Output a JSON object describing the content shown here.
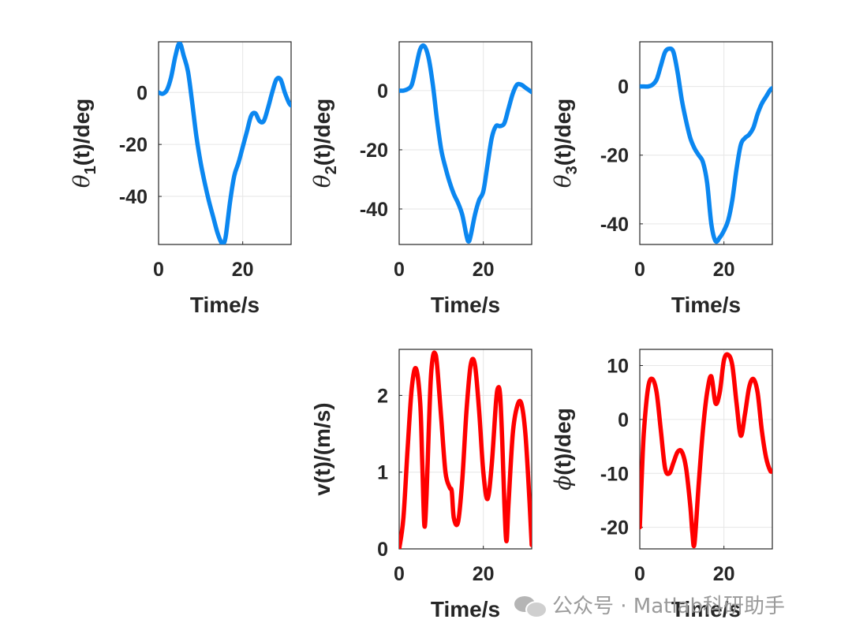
{
  "chart_data": [
    {
      "type": "line",
      "ylabel_symbol": "θ",
      "ylabel_sub": "1",
      "ylabel_rest": "(t)/deg",
      "xlabel": "Time/s",
      "xlim": [
        0,
        31.5
      ],
      "ylim": [
        -58.5,
        19.5
      ],
      "xticks": [
        0,
        20
      ],
      "yticks": [
        0,
        -20,
        -40
      ],
      "color": "#0b87f0",
      "x": [
        0,
        1,
        2,
        3,
        4,
        5,
        6,
        7,
        8,
        9,
        10,
        11,
        12,
        13,
        14,
        15,
        15.5,
        16,
        17,
        18,
        19,
        20,
        21,
        22,
        23,
        24,
        25,
        26,
        27,
        28,
        29,
        30,
        31,
        31.5
      ],
      "y": [
        0,
        -0.5,
        1,
        6,
        14,
        19,
        14,
        8,
        -4,
        -17,
        -27,
        -35,
        -42,
        -48,
        -54,
        -58,
        -58,
        -55,
        -42,
        -32,
        -27,
        -21,
        -15,
        -9,
        -8,
        -11,
        -11,
        -6,
        0,
        5,
        5,
        0,
        -4,
        -5
      ]
    },
    {
      "type": "line",
      "ylabel_symbol": "θ",
      "ylabel_sub": "2",
      "ylabel_rest": "(t)/deg",
      "xlabel": "Time/s",
      "xlim": [
        0,
        31.5
      ],
      "ylim": [
        -52,
        16.5
      ],
      "xticks": [
        0,
        20
      ],
      "yticks": [
        0,
        -20,
        -40
      ],
      "color": "#0b87f0",
      "x": [
        0,
        1,
        2,
        3,
        4,
        5,
        6,
        7,
        8,
        9,
        10,
        11,
        12,
        13,
        14,
        15,
        16,
        16.5,
        17,
        18,
        19,
        20,
        21,
        22,
        23,
        24,
        25,
        26,
        27,
        28,
        29,
        30,
        31,
        31.5
      ],
      "y": [
        0,
        0,
        0.5,
        2,
        8,
        14,
        15,
        11,
        2,
        -10,
        -20,
        -26,
        -31,
        -35,
        -38,
        -42,
        -49,
        -51,
        -49,
        -42,
        -37,
        -34,
        -25,
        -16,
        -12,
        -12,
        -11,
        -6,
        -1,
        2,
        2,
        1,
        0,
        -0.5
      ]
    },
    {
      "type": "line",
      "ylabel_symbol": "θ",
      "ylabel_sub": "3",
      "ylabel_rest": "(t)/deg",
      "xlabel": "Time/s",
      "xlim": [
        0,
        31.5
      ],
      "ylim": [
        -46,
        13
      ],
      "xticks": [
        0,
        20
      ],
      "yticks": [
        0,
        -20,
        -40
      ],
      "color": "#0b87f0",
      "x": [
        0,
        1,
        2,
        3,
        4,
        5,
        6,
        7,
        8,
        9,
        10,
        11,
        12,
        13,
        14,
        15,
        16,
        17,
        18,
        19,
        20,
        21,
        22,
        23,
        24,
        25,
        26,
        27,
        28,
        29,
        30,
        31,
        31.5
      ],
      "y": [
        0,
        0,
        0,
        0.5,
        2,
        6,
        10,
        11,
        10,
        4,
        -4,
        -10,
        -15,
        -18,
        -20,
        -22,
        -28,
        -40,
        -45,
        -44,
        -42,
        -39,
        -33,
        -24,
        -17,
        -15,
        -14,
        -12,
        -8,
        -5,
        -3,
        -1,
        -0.5
      ]
    },
    {
      "type": "line",
      "ylabel_symbol": "",
      "ylabel_sub": "",
      "ylabel_rest": "v(t)/(m/s)",
      "xlabel": "Time/s",
      "xlim": [
        0,
        31.5
      ],
      "ylim": [
        0,
        2.6
      ],
      "xticks": [
        0,
        20
      ],
      "yticks": [
        0,
        1,
        2
      ],
      "color": "#ff0000",
      "x": [
        0,
        1,
        2,
        3,
        4,
        5,
        5.5,
        6,
        6.5,
        7,
        7.5,
        8,
        8.5,
        9,
        10,
        11,
        12,
        12.5,
        13,
        14,
        15,
        16,
        17,
        18,
        19,
        20,
        21,
        22,
        23,
        23.5,
        24,
        24.5,
        25,
        25.5,
        26,
        27,
        28,
        29,
        30,
        31,
        31.5
      ],
      "y": [
        0,
        0.4,
        1.3,
        2.1,
        2.35,
        1.9,
        1.1,
        0.3,
        0.7,
        1.5,
        2.2,
        2.5,
        2.55,
        2.4,
        1.7,
        1.0,
        0.8,
        0.75,
        0.4,
        0.35,
        0.9,
        1.8,
        2.4,
        2.4,
        1.8,
        1.0,
        0.65,
        1.1,
        1.9,
        2.1,
        2.0,
        1.4,
        0.6,
        0.1,
        0.6,
        1.5,
        1.85,
        1.9,
        1.5,
        0.6,
        0.05
      ]
    },
    {
      "type": "line",
      "ylabel_symbol": "ϕ",
      "ylabel_sub": "",
      "ylabel_rest": "(t)/deg",
      "xlabel": "Time/s",
      "xlim": [
        0,
        31.5
      ],
      "ylim": [
        -24,
        13
      ],
      "xticks": [
        0,
        20
      ],
      "yticks": [
        10,
        0,
        -10,
        -20
      ],
      "color": "#ff0000",
      "x": [
        0,
        0.5,
        1,
        2,
        3,
        4,
        5,
        6,
        7,
        8,
        9,
        10,
        11,
        12,
        12.5,
        13,
        14,
        15,
        16,
        17,
        18,
        19,
        20,
        21,
        22,
        23,
        24,
        25,
        26,
        27,
        28,
        29,
        30,
        31,
        31.5
      ],
      "y": [
        -20,
        -10,
        -2,
        6,
        7.5,
        5,
        -2,
        -9,
        -10,
        -8,
        -6,
        -6,
        -9,
        -16,
        -21,
        -23,
        -12,
        -2,
        5,
        8,
        3,
        5,
        11,
        12,
        10,
        3,
        -3,
        1,
        6,
        7.5,
        5,
        -2,
        -7,
        -9.5,
        -9.5
      ]
    }
  ],
  "watermark": "公众号 · Matlab科研助手"
}
